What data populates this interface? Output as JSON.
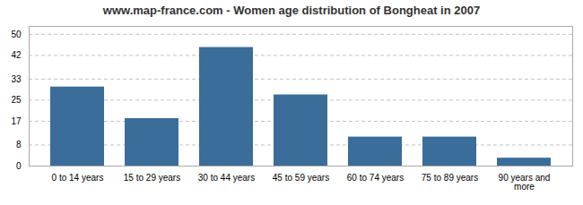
{
  "chart_data": {
    "type": "bar",
    "title": "www.map-france.com - Women age distribution of Bongheat in 2007",
    "categories": [
      "0 to 14 years",
      "15 to 29 years",
      "30 to 44 years",
      "45 to 59 years",
      "60 to 74 years",
      "75 to 89 years",
      "90 years and more"
    ],
    "values": [
      30,
      18,
      45,
      27,
      11,
      11,
      3
    ],
    "color": "#3a6d9a",
    "ylim": [
      0,
      53
    ],
    "yticks": [
      0,
      8,
      17,
      25,
      33,
      42,
      50
    ],
    "grid": true
  }
}
